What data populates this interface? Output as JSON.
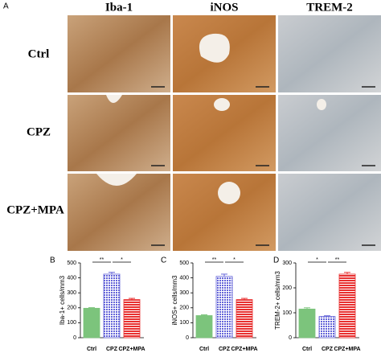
{
  "figure": {
    "panel": "A",
    "columns": [
      "Iba-1",
      "iNOS",
      "TREM-2"
    ],
    "rows": [
      "Ctrl",
      "CPZ",
      "CPZ+MPA"
    ]
  },
  "chart_data": [
    {
      "type": "bar",
      "panel": "B",
      "ylabel": "Iba-1+ cells/mm3",
      "categories": [
        "Ctrl",
        "CPZ",
        "CPZ+MPA"
      ],
      "values": [
        197,
        425,
        255
      ],
      "errors": [
        4,
        12,
        8
      ],
      "colors": [
        "#7cc47c",
        "#6464d8",
        "#e83030"
      ],
      "patterns": [
        "solid",
        "dots",
        "stripes"
      ],
      "significance": [
        "**",
        "*"
      ],
      "ylim": [
        0,
        500
      ],
      "yticks": [
        0,
        100,
        200,
        300,
        400,
        500
      ]
    },
    {
      "type": "bar",
      "panel": "C",
      "ylabel": "iNOS+ cells/mm3",
      "categories": [
        "Ctrl",
        "CPZ",
        "CPZ+MPA"
      ],
      "values": [
        148,
        410,
        255
      ],
      "errors": [
        5,
        15,
        8
      ],
      "colors": [
        "#7cc47c",
        "#6464d8",
        "#e83030"
      ],
      "patterns": [
        "solid",
        "dots",
        "stripes"
      ],
      "significance": [
        "**",
        "*"
      ],
      "ylim": [
        0,
        500
      ],
      "yticks": [
        0,
        100,
        200,
        300,
        400,
        500
      ]
    },
    {
      "type": "bar",
      "panel": "D",
      "ylabel": "TREM-2+ cells/mm3",
      "categories": [
        "Ctrl",
        "CPZ",
        "CPZ+MPA"
      ],
      "values": [
        115,
        85,
        255
      ],
      "errors": [
        5,
        3,
        7
      ],
      "colors": [
        "#7cc47c",
        "#6464d8",
        "#e83030"
      ],
      "patterns": [
        "solid",
        "dots",
        "stripes"
      ],
      "significance": [
        "*",
        "**"
      ],
      "ylim": [
        0,
        300
      ],
      "yticks": [
        0,
        100,
        200,
        300
      ]
    }
  ]
}
